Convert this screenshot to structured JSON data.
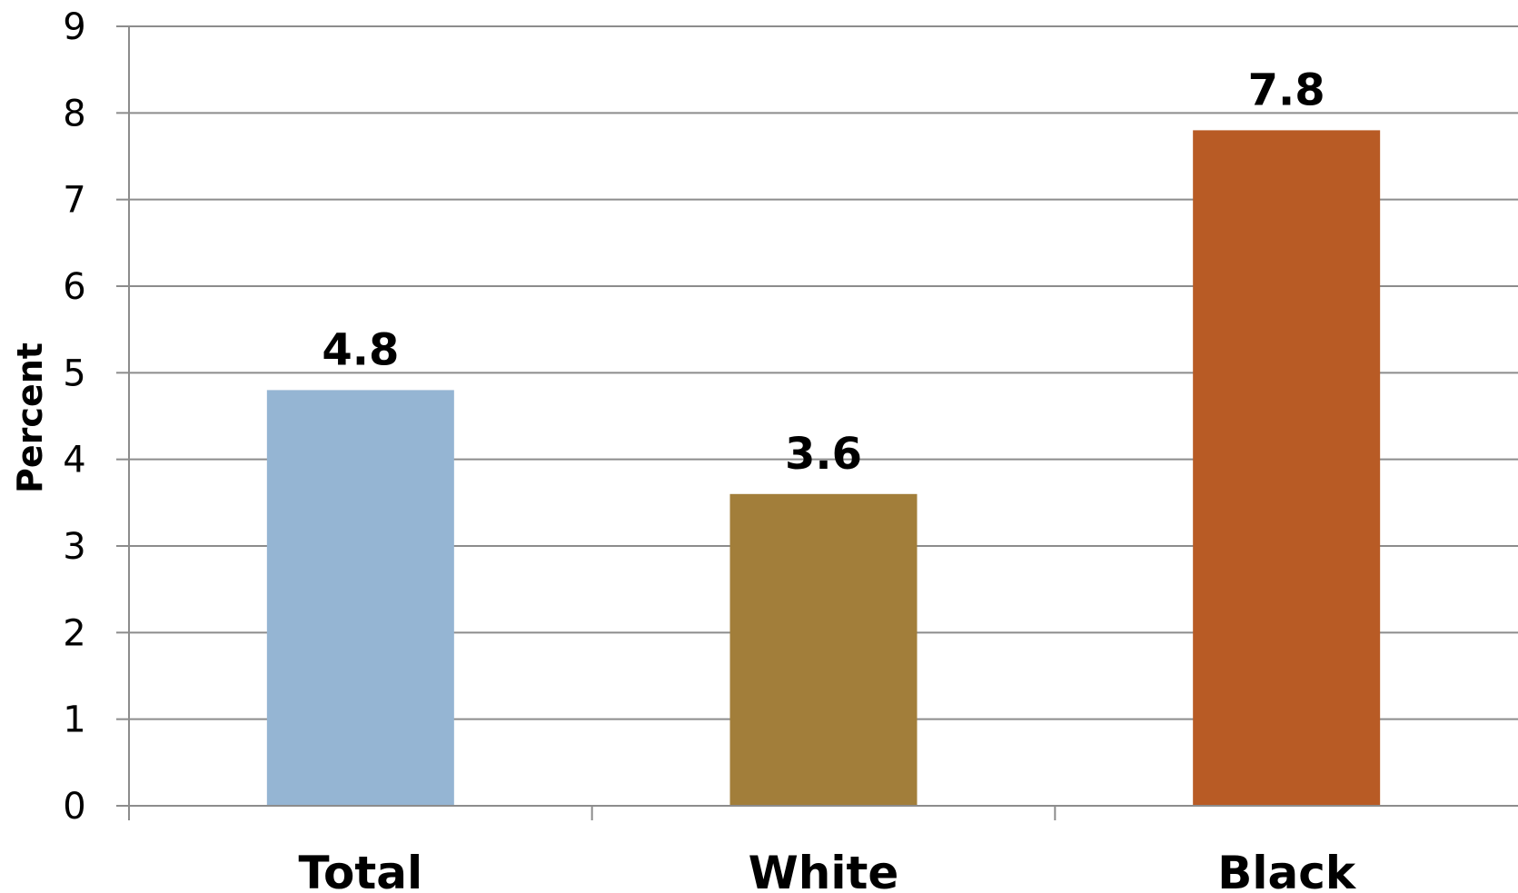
{
  "chart_data": {
    "type": "bar",
    "title": "",
    "xlabel": "",
    "ylabel": "Percent",
    "categories": [
      "Total",
      "White",
      "Black"
    ],
    "values": [
      4.8,
      3.6,
      7.8
    ],
    "data_labels": [
      "4.8",
      "3.6",
      "7.8"
    ],
    "bar_colors": [
      "#95B5D3",
      "#A27E3A",
      "#B85B25"
    ],
    "ylim": [
      0,
      9
    ],
    "yticks": [
      0,
      1,
      2,
      3,
      4,
      5,
      6,
      7,
      8,
      9
    ],
    "ytick_labels": [
      "0",
      "1",
      "2",
      "3",
      "4",
      "5",
      "6",
      "7",
      "8",
      "9"
    ],
    "grid": true,
    "legend": "none",
    "gridline_color": "#8C8C8C"
  }
}
